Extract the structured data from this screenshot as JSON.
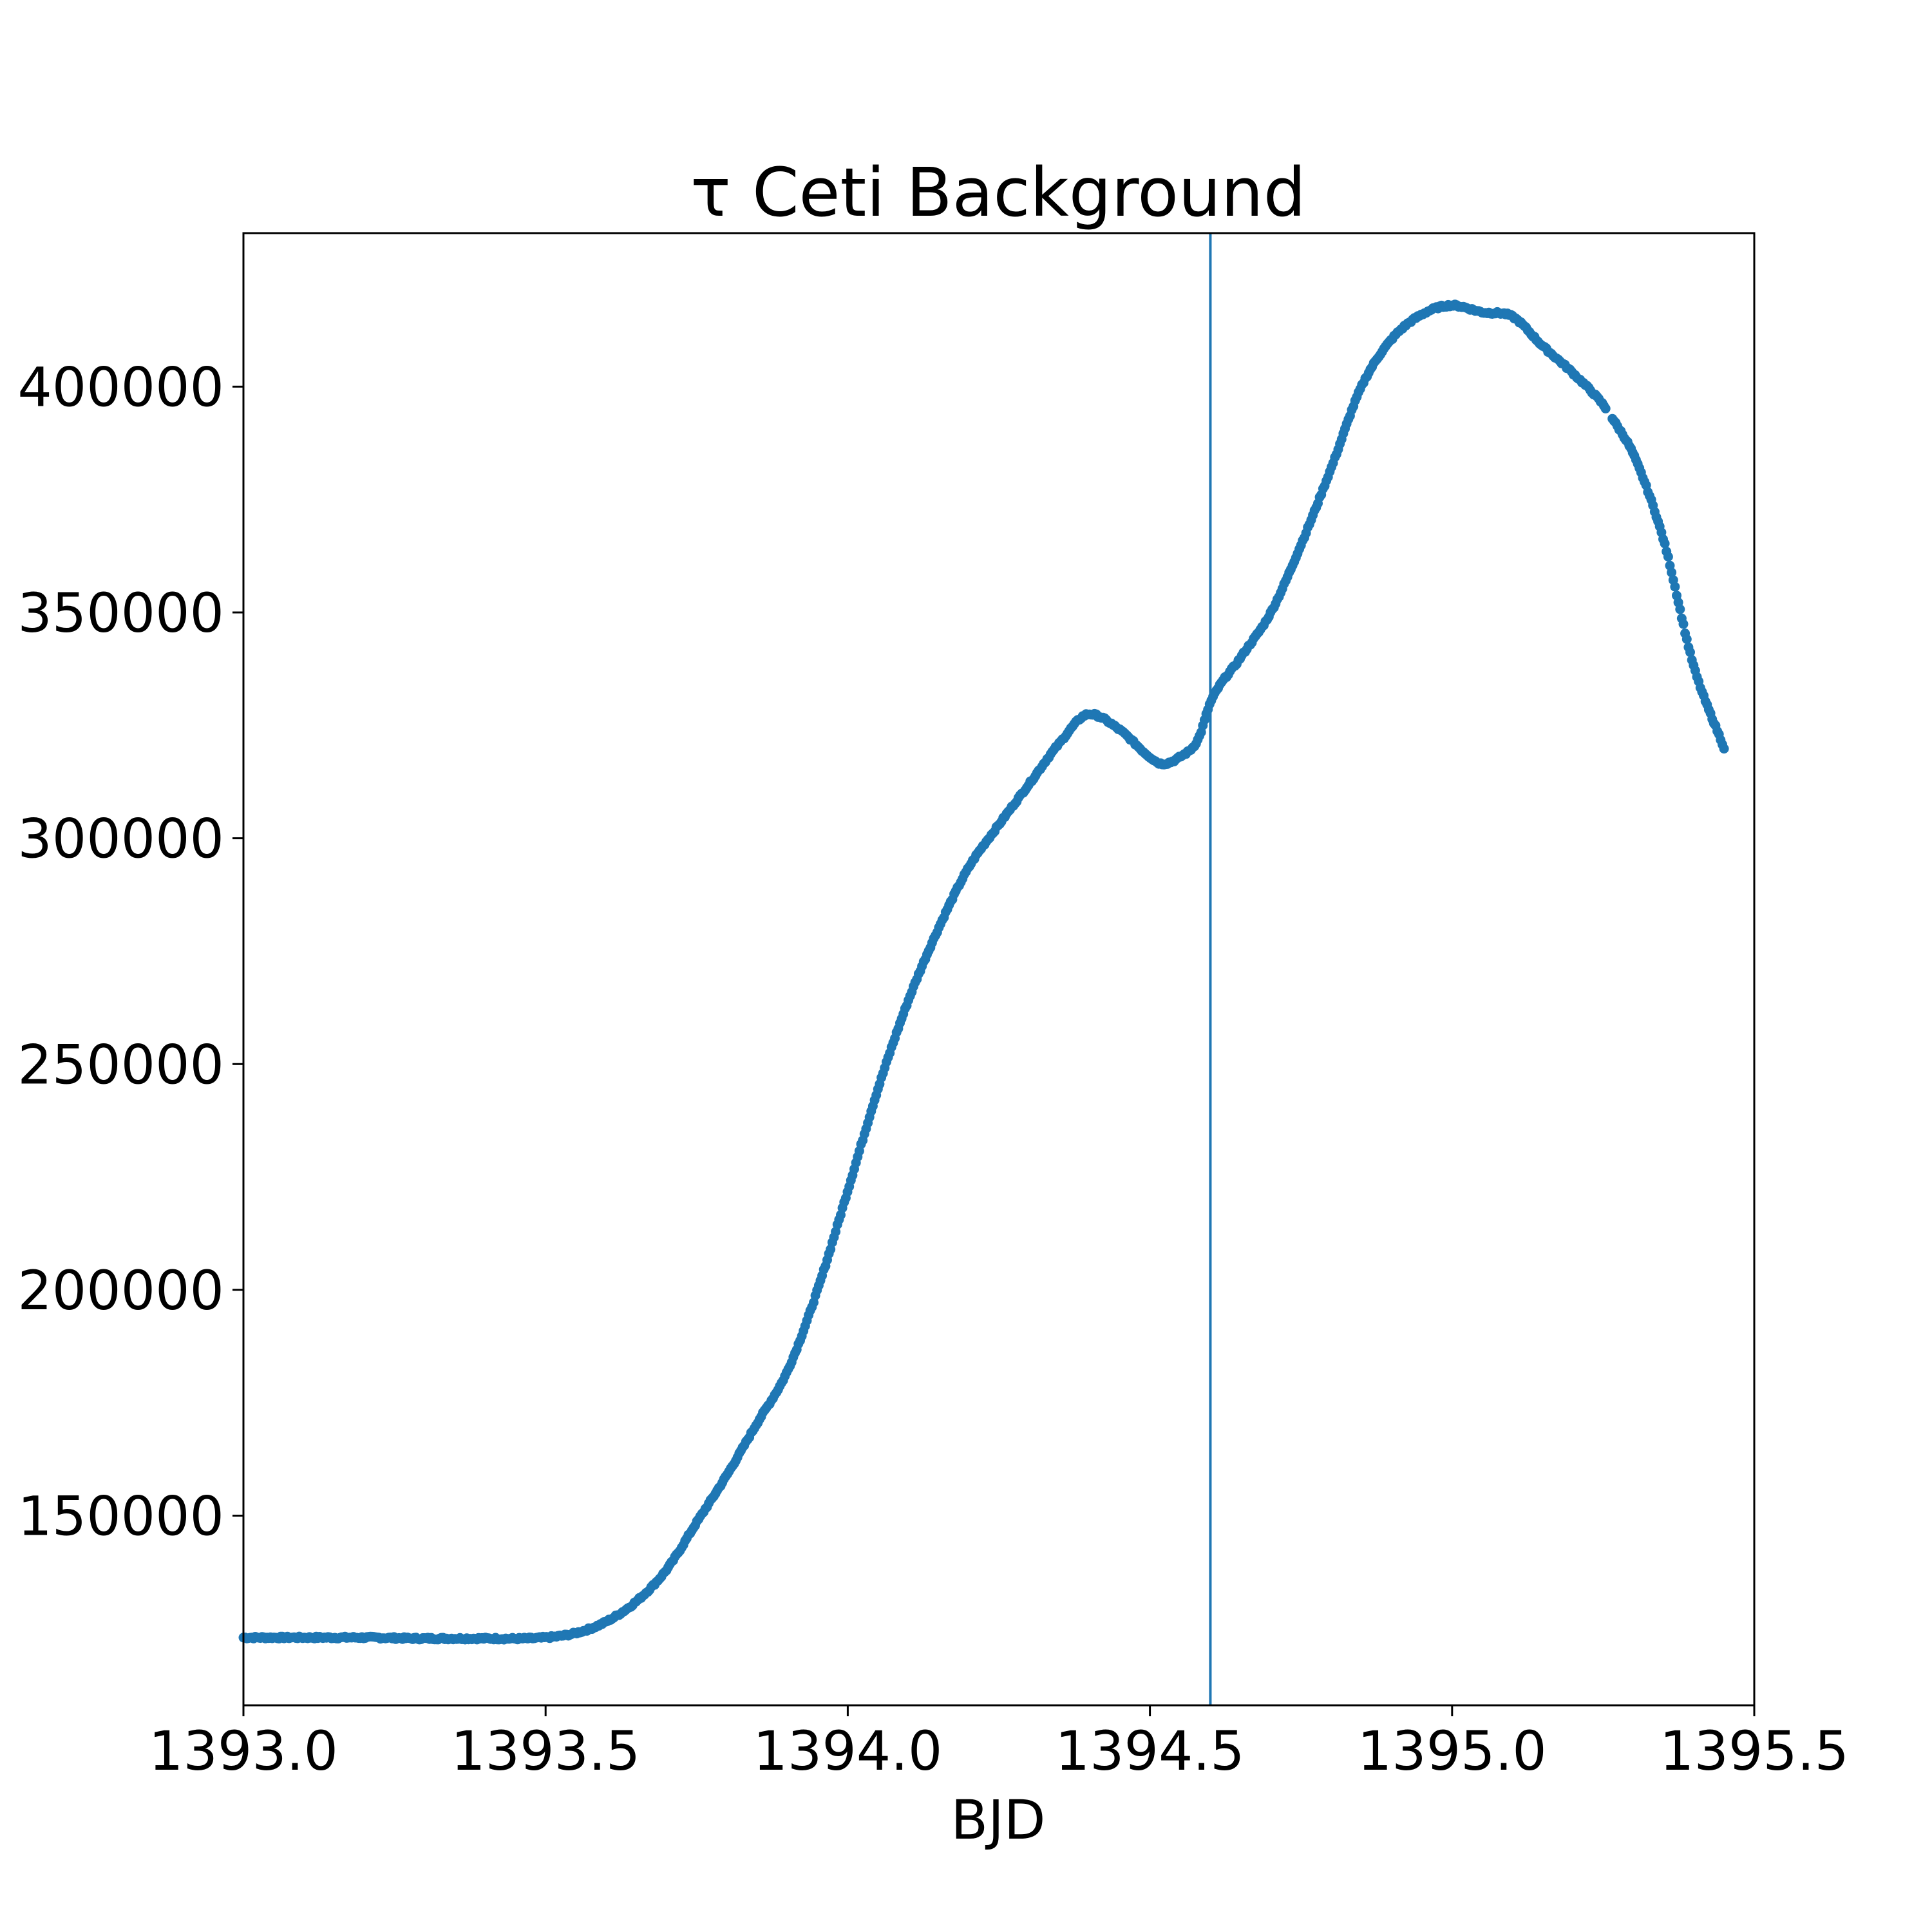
{
  "chart_data": {
    "type": "scatter",
    "title": "τ Ceti Background",
    "xlabel": "BJD",
    "ylabel": "",
    "xlim": [
      1393.0,
      1395.5
    ],
    "ylim": [
      108000,
      434000
    ],
    "xticks": [
      "1393.0",
      "1393.5",
      "1394.0",
      "1394.5",
      "1395.0",
      "1395.5"
    ],
    "xtick_values": [
      1393.0,
      1393.5,
      1394.0,
      1394.5,
      1395.0,
      1395.5
    ],
    "yticks": [
      "150000",
      "200000",
      "250000",
      "300000",
      "350000",
      "400000"
    ],
    "ytick_values": [
      150000,
      200000,
      250000,
      300000,
      350000,
      400000
    ],
    "vline": 1394.6,
    "color": "#1f77b4",
    "grid": false,
    "gap": [
      1395.255,
      1395.265
    ],
    "series": [
      {
        "x": [
          1393.0,
          1393.1,
          1393.2,
          1393.3,
          1393.4,
          1393.5,
          1393.55,
          1393.6,
          1393.65,
          1393.7,
          1393.75,
          1393.8,
          1393.85,
          1393.9,
          1393.95,
          1394.0,
          1394.05,
          1394.1,
          1394.15,
          1394.2,
          1394.25,
          1394.3,
          1394.35,
          1394.4,
          1394.45,
          1394.5,
          1394.52,
          1394.55,
          1394.58,
          1394.6,
          1394.65,
          1394.7,
          1394.75,
          1394.8,
          1394.85,
          1394.9,
          1394.95,
          1395.0,
          1395.05,
          1395.1,
          1395.15,
          1395.2,
          1395.25,
          1395.27,
          1395.3,
          1395.35,
          1395.4,
          1395.45
        ],
        "y": [
          123000,
          123000,
          123000,
          122800,
          122800,
          123000,
          124000,
          126500,
          131000,
          138000,
          148500,
          159000,
          170500,
          182000,
          200000,
          222000,
          244500,
          264000,
          280000,
          293500,
          303000,
          312000,
          321000,
          327500,
          324000,
          318000,
          316500,
          318000,
          322000,
          330000,
          340000,
          350000,
          365000,
          382000,
          400000,
          410500,
          416000,
          418000,
          416500,
          415500,
          409000,
          403000,
          396000,
          392000,
          385000,
          366000,
          338000,
          320000
        ]
      }
    ]
  }
}
